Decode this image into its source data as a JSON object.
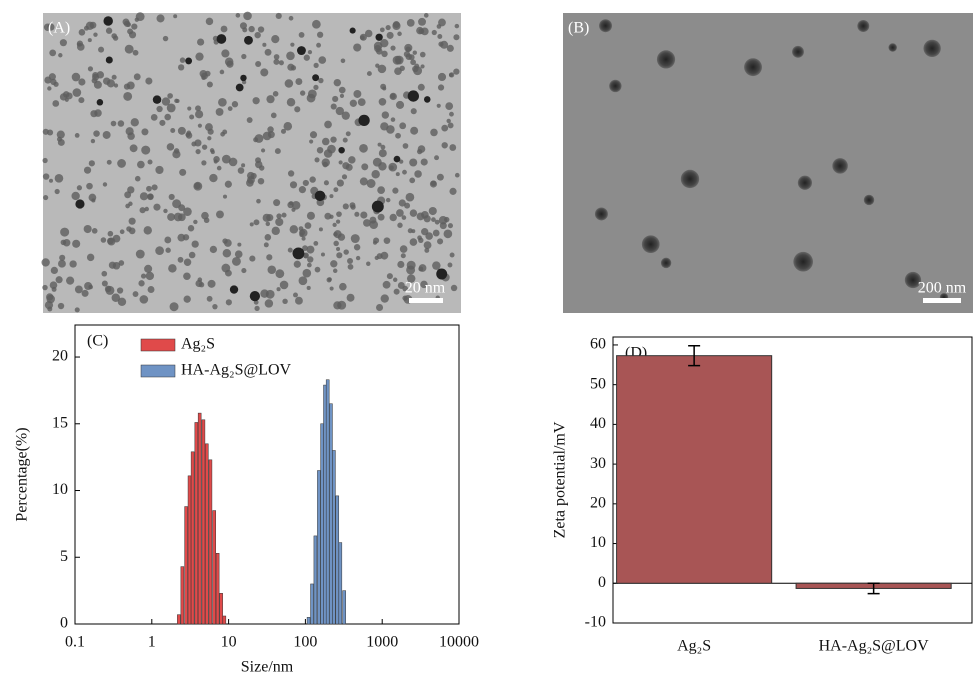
{
  "panels": [
    {
      "label": "(A)",
      "scale_bar": "20 nm"
    },
    {
      "label": "(B)",
      "scale_bar": "200 nm"
    }
  ],
  "chart_data": [
    {
      "type": "histogram",
      "label": "(C)",
      "x_label": "Size/nm",
      "y_label": "Percentage(%)",
      "log_x": true,
      "xlim": [
        0.1,
        10000
      ],
      "xticks": [
        0.1,
        1,
        10,
        100,
        1000,
        10000
      ],
      "ylim": [
        0,
        22.4
      ],
      "yticks": [
        0,
        5,
        10,
        15,
        20
      ],
      "legend": "top-left",
      "series": [
        {
          "name": "Ag₂S",
          "color": "#e04a4a",
          "x": [
            2.25,
            2.5,
            2.8,
            3.1,
            3.4,
            3.8,
            4.2,
            4.7,
            5.2,
            5.8,
            6.5,
            7.2,
            8.0,
            8.8
          ],
          "values": [
            0.7,
            4.3,
            8.8,
            11.1,
            12.9,
            15.1,
            15.8,
            15.3,
            13.5,
            12.3,
            8.5,
            5.3,
            2.3,
            0.6
          ]
        },
        {
          "name": "HA-Ag₂S@LOV",
          "color": "#6f93c4",
          "x": [
            110,
            122,
            135,
            150,
            165,
            180,
            195,
            215,
            235,
            260,
            285,
            320
          ],
          "values": [
            0.5,
            3.0,
            6.6,
            11.5,
            15.0,
            17.9,
            18.3,
            16.5,
            13.0,
            9.6,
            6.1,
            2.5
          ]
        }
      ]
    },
    {
      "type": "bar",
      "label": "(D)",
      "y_label": "Zeta potential/mV",
      "categories": [
        "Ag₂S",
        "HA-Ag₂S@LOV"
      ],
      "values": [
        57.3,
        -1.3
      ],
      "errors": [
        2.5,
        1.3
      ],
      "color": "#a85555",
      "ylim": [
        -10,
        62
      ],
      "yticks": [
        -10,
        0,
        10,
        20,
        30,
        40,
        50,
        60
      ]
    }
  ]
}
